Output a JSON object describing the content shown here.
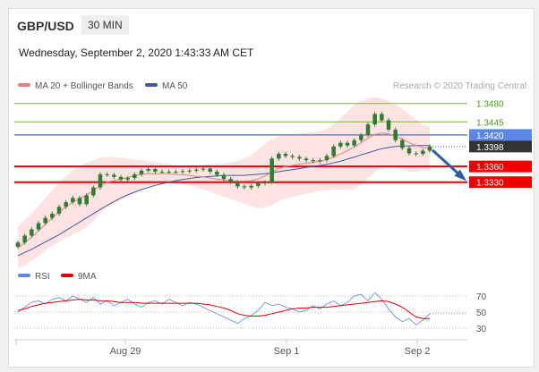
{
  "header": {
    "symbol": "GBP/USD",
    "timeframe": "30 MIN",
    "datetime": "Wednesday, September 2, 2020 1:43:33 AM CET",
    "copyright": "Research © 2020 Trading Central"
  },
  "colors": {
    "candle": "#2e7d32",
    "bollinger": "#ffcccc",
    "ma20": "#ef7b7b",
    "ma50": "#3a5aa8",
    "support": "#ee0000",
    "resistance": "#74b83b",
    "pivot": "#5b86e5",
    "current": "#333333",
    "rsi": "#5b86e5",
    "ma9": "#e00000",
    "arrow": "#2f5e9e"
  },
  "chart_data": [
    {
      "type": "line",
      "subtype": "candlestick",
      "legend": [
        {
          "label": "MA 20 + Bollinger Bands",
          "color": "#ef7b7b"
        },
        {
          "label": "MA 50",
          "color": "#3a5aa8"
        }
      ],
      "x_ticks": [
        "Aug 29",
        "Sep 1",
        "Sep 2"
      ],
      "ylim": [
        1.32,
        1.35
      ],
      "levels": [
        {
          "label": "1.3480",
          "value": 1.348,
          "kind": "resistance"
        },
        {
          "label": "1.3445",
          "value": 1.3445,
          "kind": "resistance"
        },
        {
          "label": "1.3420",
          "value": 1.342,
          "kind": "pivot"
        },
        {
          "label": "1.3398",
          "value": 1.3398,
          "kind": "current"
        },
        {
          "label": "1.3360",
          "value": 1.336,
          "kind": "support"
        },
        {
          "label": "1.3330",
          "value": 1.333,
          "kind": "support"
        }
      ],
      "close": [
        1.3215,
        1.3228,
        1.324,
        1.3252,
        1.3262,
        1.327,
        1.3283,
        1.3292,
        1.33,
        1.3288,
        1.3305,
        1.332,
        1.3345,
        1.3344,
        1.334,
        1.3335,
        1.3338,
        1.3345,
        1.3352,
        1.3355,
        1.335,
        1.335,
        1.335,
        1.335,
        1.3351,
        1.3352,
        1.3354,
        1.3356,
        1.335,
        1.3344,
        1.3336,
        1.333,
        1.3322,
        1.332,
        1.3323,
        1.3328,
        1.333,
        1.3375,
        1.3384,
        1.338,
        1.3378,
        1.3375,
        1.3372,
        1.337,
        1.3372,
        1.338,
        1.3398,
        1.3405,
        1.34,
        1.341,
        1.342,
        1.344,
        1.346,
        1.3448,
        1.343,
        1.341,
        1.3395,
        1.3385,
        1.3384,
        1.339,
        1.3398
      ],
      "ma20": [
        1.3205,
        1.3215,
        1.3225,
        1.3237,
        1.325,
        1.3262,
        1.3273,
        1.3283,
        1.3292,
        1.3298,
        1.3306,
        1.3314,
        1.3323,
        1.333,
        1.3333,
        1.3336,
        1.3339,
        1.3342,
        1.3345,
        1.3346,
        1.3346,
        1.3346,
        1.3346,
        1.3345,
        1.3344,
        1.3343,
        1.3341,
        1.334,
        1.3338,
        1.3336,
        1.3334,
        1.3333,
        1.3332,
        1.3332,
        1.3333,
        1.3336,
        1.3342,
        1.3349,
        1.3356,
        1.336,
        1.3362,
        1.3364,
        1.3366,
        1.3368,
        1.337,
        1.3373,
        1.3378,
        1.3384,
        1.339,
        1.3397,
        1.3405,
        1.3414,
        1.3421,
        1.3424,
        1.3422,
        1.3418,
        1.3412,
        1.3405,
        1.34,
        1.3396,
        1.3394
      ],
      "ma50": [
        1.319,
        1.3196,
        1.3202,
        1.3209,
        1.3216,
        1.3223,
        1.323,
        1.3238,
        1.3246,
        1.3254,
        1.3262,
        1.327,
        1.3278,
        1.3286,
        1.3293,
        1.33,
        1.3306,
        1.3311,
        1.3316,
        1.332,
        1.3324,
        1.3327,
        1.333,
        1.3333,
        1.3335,
        1.3337,
        1.3339,
        1.334,
        1.3341,
        1.3342,
        1.3343,
        1.3343,
        1.3343,
        1.3343,
        1.3344,
        1.3345,
        1.3346,
        1.3348,
        1.335,
        1.3352,
        1.3354,
        1.3356,
        1.3358,
        1.336,
        1.3362,
        1.3364,
        1.3367,
        1.337,
        1.3374,
        1.3378,
        1.3382,
        1.3386,
        1.339,
        1.3394,
        1.3396,
        1.3398,
        1.3399,
        1.3399,
        1.34,
        1.34,
        1.34
      ],
      "bb_upper": [
        1.3245,
        1.3258,
        1.327,
        1.3285,
        1.33,
        1.3315,
        1.333,
        1.3342,
        1.3353,
        1.336,
        1.3367,
        1.3372,
        1.3376,
        1.3378,
        1.3378,
        1.3377,
        1.3375,
        1.3373,
        1.3372,
        1.337,
        1.3368,
        1.3366,
        1.3364,
        1.3362,
        1.3362,
        1.3362,
        1.3362,
        1.3363,
        1.3364,
        1.3365,
        1.3366,
        1.3368,
        1.337,
        1.3375,
        1.3382,
        1.3392,
        1.3403,
        1.3412,
        1.3418,
        1.3421,
        1.3422,
        1.3423,
        1.3424,
        1.3425,
        1.3427,
        1.3432,
        1.344,
        1.3452,
        1.3465,
        1.3477,
        1.3485,
        1.349,
        1.3492,
        1.349,
        1.3485,
        1.3478,
        1.347,
        1.346,
        1.345,
        1.344,
        1.3435
      ],
      "bb_lower": [
        1.3165,
        1.3172,
        1.318,
        1.3189,
        1.32,
        1.3209,
        1.3216,
        1.3224,
        1.3231,
        1.3236,
        1.3245,
        1.3256,
        1.327,
        1.3282,
        1.3288,
        1.3295,
        1.3303,
        1.3311,
        1.3318,
        1.3322,
        1.3324,
        1.3326,
        1.3328,
        1.3328,
        1.3326,
        1.3324,
        1.332,
        1.3317,
        1.3312,
        1.3307,
        1.3302,
        1.3298,
        1.3294,
        1.3289,
        1.3284,
        1.328,
        1.3281,
        1.3286,
        1.3294,
        1.3299,
        1.3302,
        1.3305,
        1.3308,
        1.3311,
        1.3313,
        1.3314,
        1.3316,
        1.3316,
        1.3315,
        1.3317,
        1.3325,
        1.3338,
        1.335,
        1.3358,
        1.3359,
        1.3358,
        1.3354,
        1.335,
        1.335,
        1.3352,
        1.3353
      ]
    },
    {
      "type": "line",
      "legend": [
        {
          "label": "RSI",
          "color": "#5b86e5"
        },
        {
          "label": "9MA",
          "color": "#e00000"
        }
      ],
      "y_ticks": [
        "70",
        "50",
        "30"
      ],
      "ylim": [
        20,
        80
      ],
      "rsi": [
        50,
        56,
        62,
        64,
        60,
        66,
        68,
        64,
        70,
        66,
        62,
        68,
        60,
        64,
        58,
        62,
        66,
        60,
        56,
        62,
        64,
        60,
        66,
        62,
        58,
        62,
        60,
        56,
        52,
        48,
        44,
        40,
        36,
        42,
        46,
        52,
        62,
        58,
        60,
        56,
        54,
        50,
        52,
        58,
        54,
        60,
        64,
        58,
        62,
        70,
        72,
        64,
        74,
        66,
        54,
        44,
        38,
        42,
        34,
        40,
        48
      ],
      "ma9": [
        52,
        54,
        57,
        59,
        61,
        62,
        63,
        64,
        65,
        66,
        65,
        65,
        64,
        64,
        63,
        62,
        62,
        62,
        61,
        61,
        61,
        61,
        61,
        61,
        61,
        61,
        61,
        60,
        59,
        57,
        55,
        52,
        48,
        46,
        45,
        45,
        46,
        48,
        50,
        52,
        54,
        55,
        55,
        56,
        56,
        56,
        57,
        58,
        59,
        60,
        61,
        62,
        63,
        64,
        63,
        60,
        56,
        50,
        44,
        42,
        42
      ]
    }
  ]
}
